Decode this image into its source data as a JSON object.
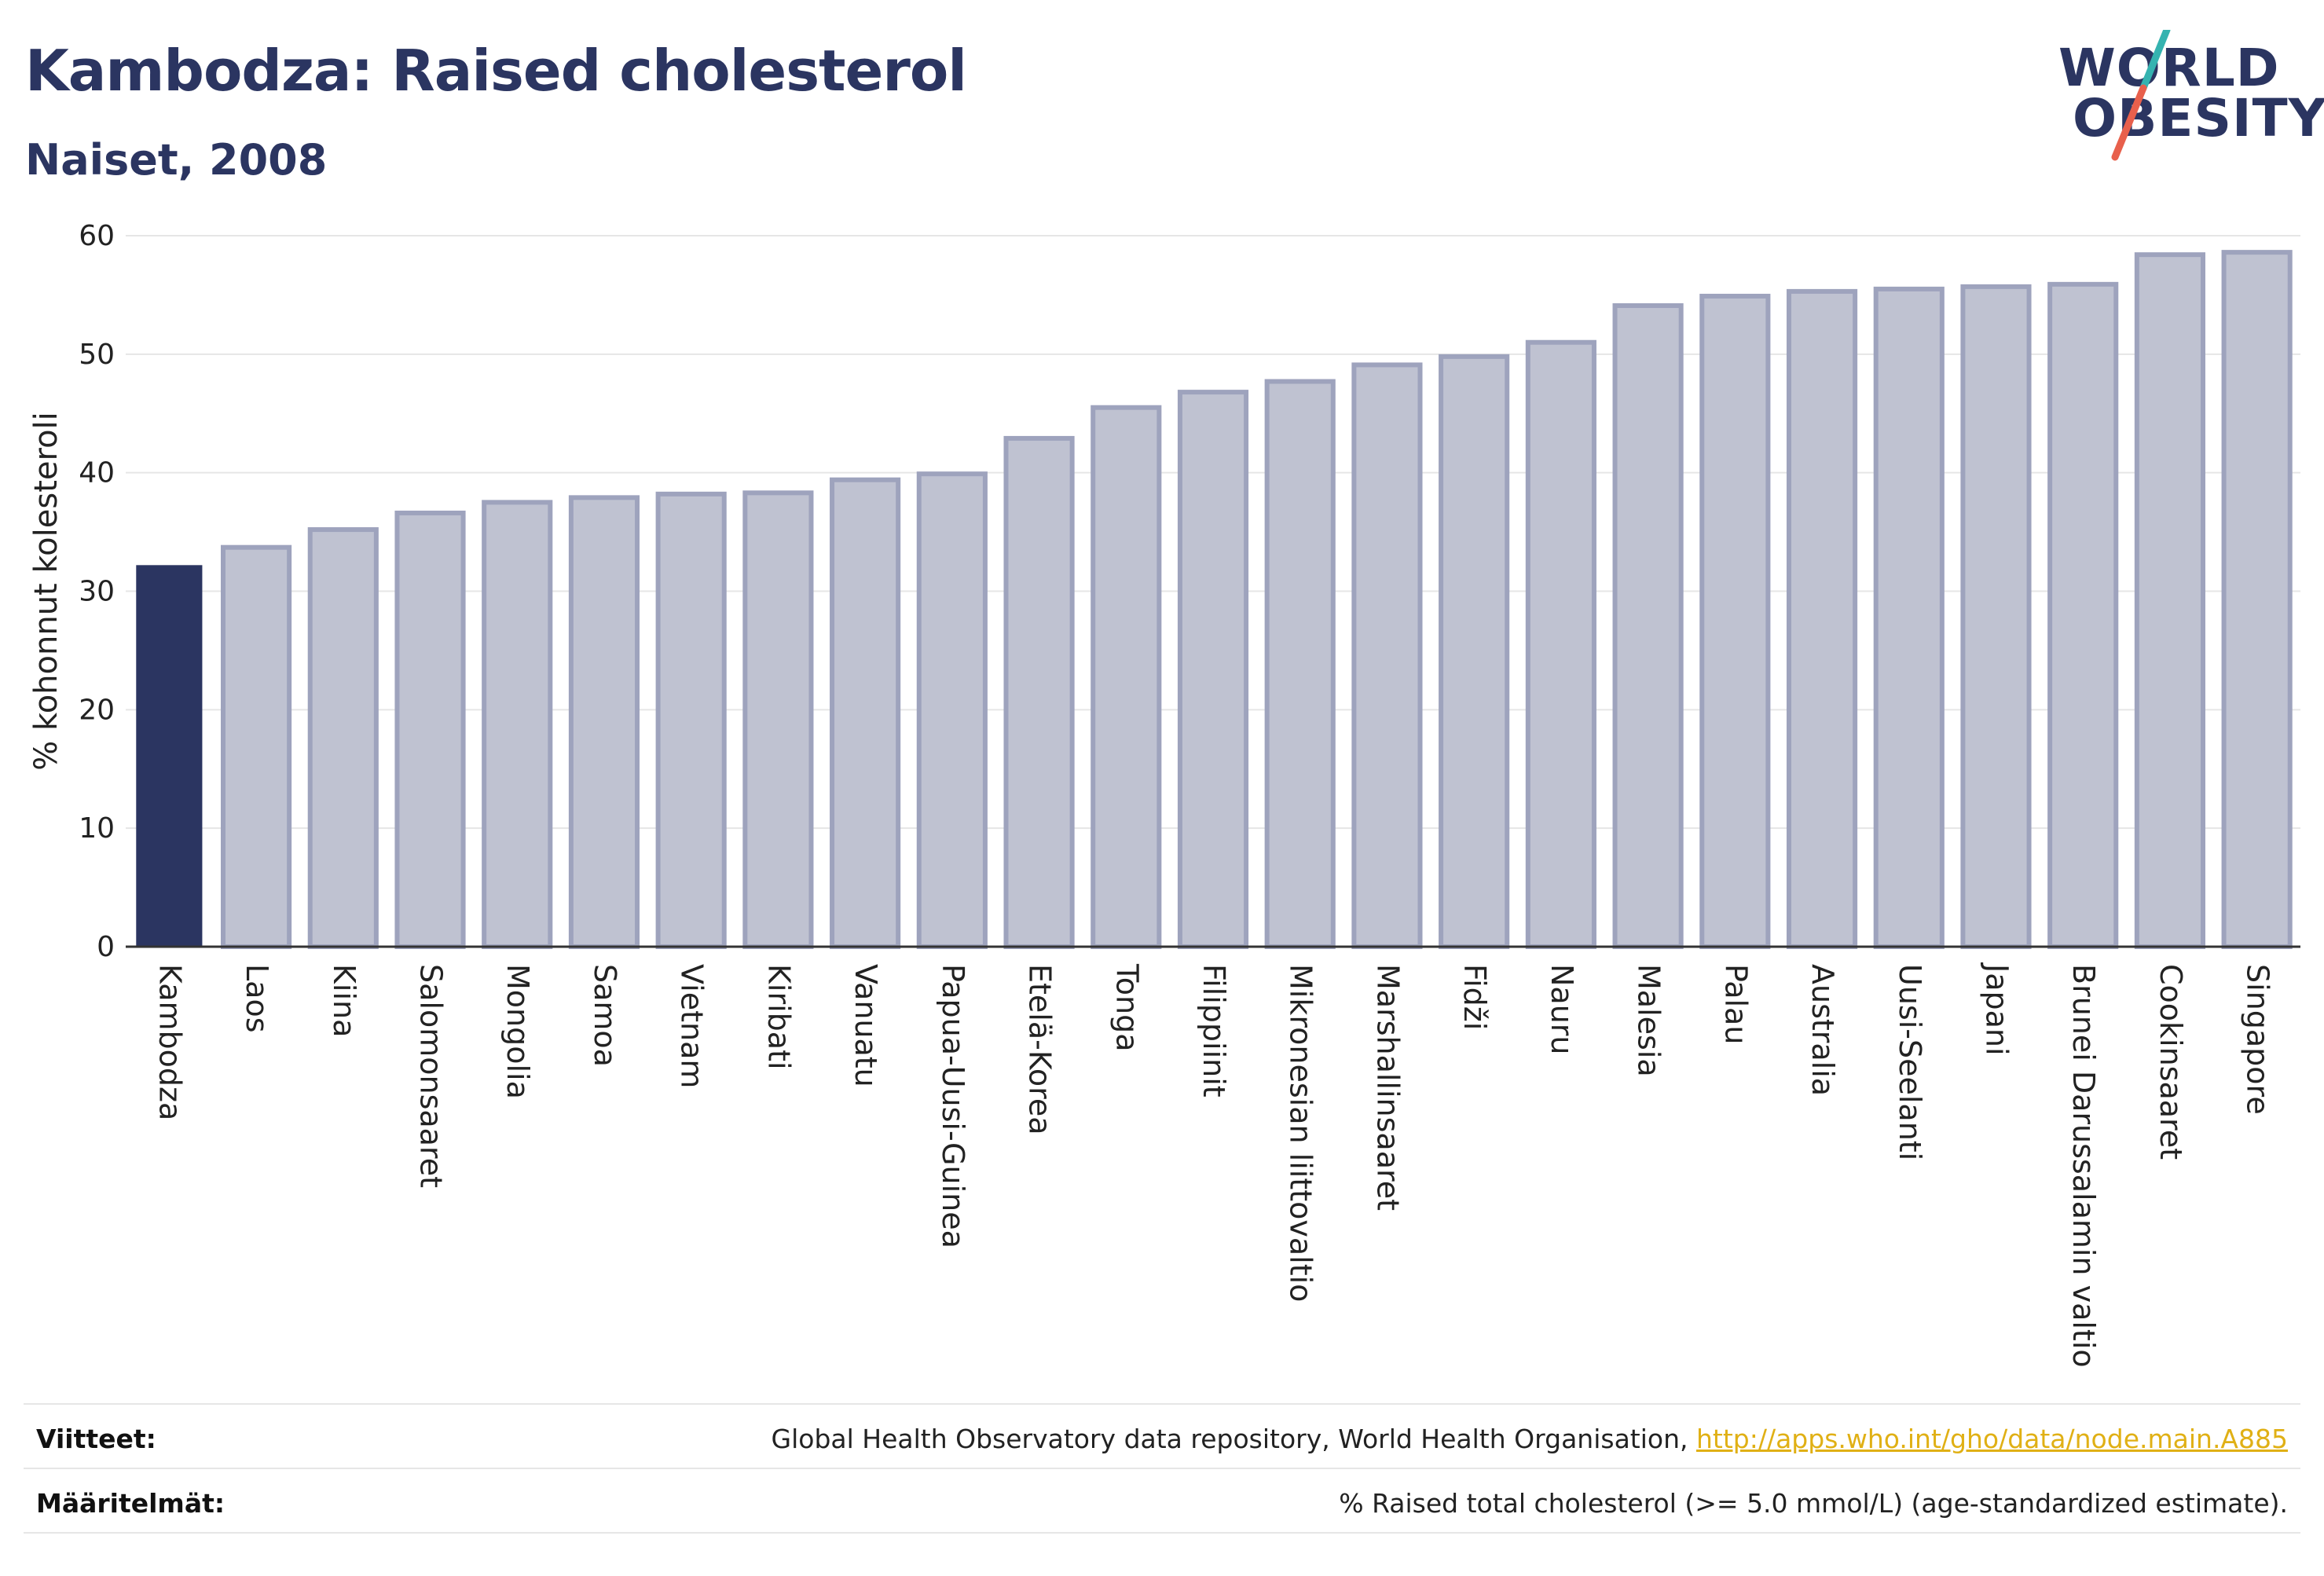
{
  "header": {
    "title": "Kambodza: Raised cholesterol",
    "subtitle": "Naiset, 2008"
  },
  "logo": {
    "line1": "WORLD",
    "line2": "OBESITY",
    "slash_colors": [
      "#35b3b0",
      "#e8604c"
    ]
  },
  "colors": {
    "highlight": "#2b3561",
    "bar_fill": "#bfc2d1",
    "bar_stroke": "#9ea3bd",
    "grid": "#e6e6e6",
    "axis": "#333333"
  },
  "chart_data": {
    "type": "bar",
    "ylabel": "% kohonnut kolesteroli",
    "ylim": [
      0,
      60
    ],
    "yticks": [
      0,
      10,
      20,
      30,
      40,
      50,
      60
    ],
    "grid": true,
    "highlight_category": "Kambodza",
    "categories": [
      "Kambodza",
      "Laos",
      "Kiina",
      "Salomonsaaret",
      "Mongolia",
      "Samoa",
      "Vietnam",
      "Kiribati",
      "Vanuatu",
      "Papua-Uusi-Guinea",
      "Etelä-Korea",
      "Tonga",
      "Filippiinit",
      "Mikronesian liittovaltio",
      "Marshallinsaaret",
      "Fidži",
      "Nauru",
      "Malesia",
      "Palau",
      "Australia",
      "Uusi-Seelanti",
      "Japani",
      "Brunei Darussalamin valtio",
      "Cookinsaaret",
      "Singapore"
    ],
    "values": [
      32.2,
      33.7,
      35.2,
      36.6,
      37.5,
      37.9,
      38.2,
      38.3,
      39.4,
      39.9,
      42.9,
      45.5,
      46.8,
      47.7,
      49.1,
      49.8,
      51.0,
      54.1,
      54.9,
      55.3,
      55.5,
      55.7,
      55.9,
      58.4,
      58.6
    ]
  },
  "footer": {
    "sources_label": "Viitteet:",
    "sources_text": "Global Health Observatory data repository, World Health Organisation, ",
    "sources_link": "http://apps.who.int/gho/data/node.main.A885",
    "definitions_label": "Määritelmät:",
    "definitions_text": "% Raised total cholesterol (>= 5.0 mmol/L) (age-standardized estimate)."
  }
}
